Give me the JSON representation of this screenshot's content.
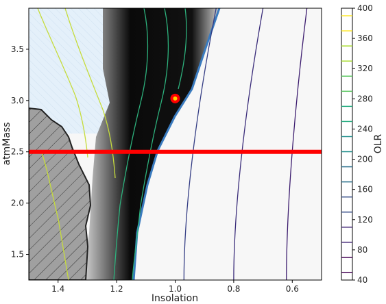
{
  "chart_data": {
    "type": "contour",
    "title": "",
    "xlabel": "Insolation",
    "ylabel": "atmMass",
    "xlim": [
      1.5,
      0.5
    ],
    "ylim": [
      1.25,
      3.9
    ],
    "x_ticks": [
      {
        "value": 1.4,
        "label": "1.4"
      },
      {
        "value": 1.2,
        "label": "1.2"
      },
      {
        "value": 1.0,
        "label": "1.0"
      },
      {
        "value": 0.8,
        "label": "0.8"
      },
      {
        "value": 0.6,
        "label": "0.6"
      }
    ],
    "y_ticks": [
      {
        "value": 1.5,
        "label": "1.5"
      },
      {
        "value": 2.0,
        "label": "2.0"
      },
      {
        "value": 2.5,
        "label": "2.5"
      },
      {
        "value": 3.0,
        "label": "3.0"
      },
      {
        "value": 3.5,
        "label": "3.5"
      }
    ],
    "colorbar": {
      "label": "OLR",
      "min": 40,
      "max": 400,
      "ticks": [
        {
          "value": 40,
          "label": "40"
        },
        {
          "value": 80,
          "label": "80"
        },
        {
          "value": 120,
          "label": "120"
        },
        {
          "value": 160,
          "label": "160"
        },
        {
          "value": 200,
          "label": "200"
        },
        {
          "value": 240,
          "label": "240"
        },
        {
          "value": 280,
          "label": "280"
        },
        {
          "value": 320,
          "label": "320"
        },
        {
          "value": 360,
          "label": "360"
        },
        {
          "value": 400,
          "label": "400"
        }
      ]
    },
    "horizontal_line": {
      "y": 2.5,
      "color": "#ff0000"
    },
    "marker": {
      "x": 1.0,
      "y": 3.02,
      "color": "#ff0000",
      "inner_color": "#ffd400"
    },
    "contour_levels": [
      {
        "level": 60,
        "color": "#3b1b6e",
        "x_bottom": 0.62,
        "x_top": 0.55
      },
      {
        "level": 80,
        "color": "#3a2c7a",
        "x_bottom": 0.8,
        "x_top": 0.7
      },
      {
        "level": 100,
        "color": "#343d84",
        "x_bottom": 0.97,
        "x_top": 0.86
      }
    ],
    "colors": {
      "cold_region": "#e6f2fb",
      "dark_band": "#0a0a0a",
      "hatched_region": "#a0a0a0",
      "right_region": "#f7f7f7",
      "boundary": "#3a7bbf",
      "high_olr": "#c6dc3c"
    }
  }
}
